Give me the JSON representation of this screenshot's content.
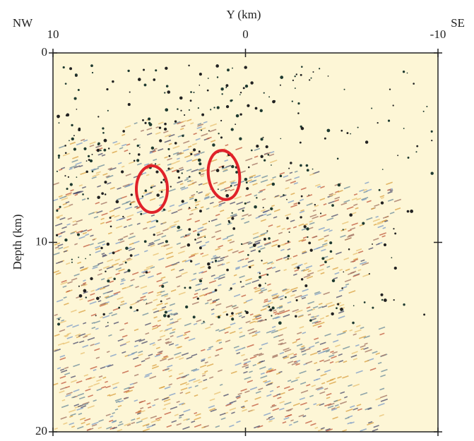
{
  "chart_data": {
    "type": "image",
    "xlabel": "Y (km)",
    "ylabel": "Depth (km)",
    "annotations": [
      "NW",
      "SE"
    ],
    "xlim": [
      10,
      -10
    ],
    "xticks": [
      10,
      0,
      -10
    ],
    "ylim": [
      0,
      20
    ],
    "yticks": [
      0,
      10,
      20
    ],
    "y_inverted": true
  }
}
